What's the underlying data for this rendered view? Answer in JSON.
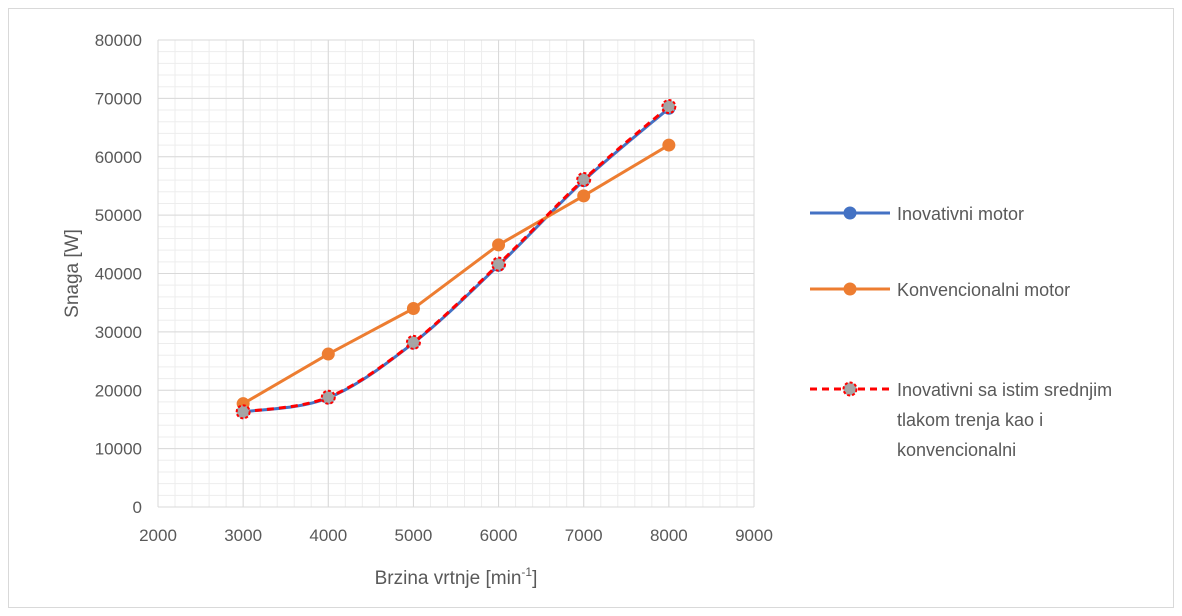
{
  "chart_data": {
    "type": "line",
    "title": "",
    "xlabel": "Brzina vrtnje [min",
    "xlabel_sup": "-1",
    "xlabel_suffix": "]",
    "ylabel": "Snaga [W]",
    "xlim": [
      2000,
      9000
    ],
    "ylim": [
      0,
      80000
    ],
    "xticks": [
      2000,
      3000,
      4000,
      5000,
      6000,
      7000,
      8000,
      9000
    ],
    "yticks": [
      0,
      10000,
      20000,
      30000,
      40000,
      50000,
      60000,
      70000,
      80000
    ],
    "grid": true,
    "legend_position": "right",
    "series": [
      {
        "name": "Inovativni motor",
        "color": "#4472c4",
        "x": [
          3000,
          4000,
          5000,
          6000,
          7000,
          8000
        ],
        "y": [
          16300,
          18700,
          28100,
          41400,
          55900,
          68300
        ]
      },
      {
        "name": "Konvencionalni motor",
        "color": "#ed7d31",
        "x": [
          3000,
          4000,
          5000,
          6000,
          7000,
          8000
        ],
        "y": [
          17700,
          26200,
          34000,
          44900,
          53300,
          62000
        ]
      },
      {
        "name": "Inovativni sa istim srednjim tlakom trenja kao i konvencionalni",
        "name_lines": [
          "Inovativni sa istim srednjim",
          "tlakom trenja kao i",
          "konvencionalni"
        ],
        "color": "#ff0000",
        "marker_fill": "#a5a5a5",
        "dashed": true,
        "x": [
          3000,
          4000,
          5000,
          6000,
          7000,
          8000
        ],
        "y": [
          16300,
          18800,
          28200,
          41600,
          56100,
          68600
        ]
      }
    ]
  }
}
